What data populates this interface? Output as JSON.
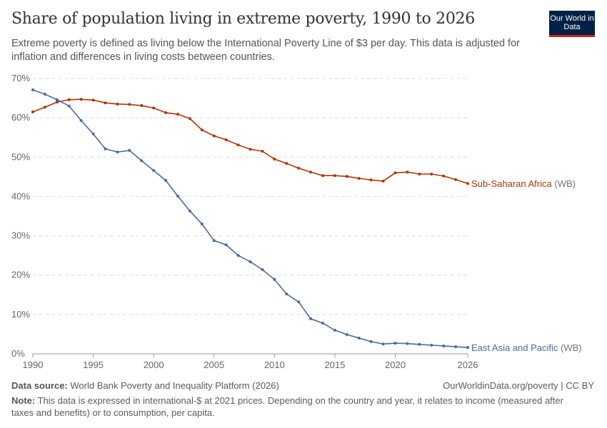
{
  "header": {
    "title": "Share of population living in extreme poverty, 1990 to 2026",
    "subtitle": "Extreme poverty is defined as living below the International Poverty Line of $3 per day. This data is adjusted for inflation and differences in living costs between countries.",
    "logo": "Our World in Data"
  },
  "footer": {
    "source_label": "Data source:",
    "source": "World Bank Poverty and Inequality Platform (2026)",
    "url": "OurWorldinData.org/poverty | CC BY",
    "note_label": "Note:",
    "note": "This data is expressed in international-$ at 2021 prices. Depending on the country and year, it relates to income (measured after taxes and benefits) or to consumption, per capita."
  },
  "chart_data": {
    "type": "line",
    "xlim": [
      1990,
      2026
    ],
    "ylim": [
      0,
      70
    ],
    "x_ticks": [
      "1990",
      "1995",
      "2000",
      "2005",
      "2010",
      "2015",
      "2020",
      "2026"
    ],
    "y_ticks": [
      "0%",
      "10%",
      "20%",
      "30%",
      "40%",
      "50%",
      "60%",
      "70%"
    ],
    "grid": true,
    "x": [
      1990,
      1991,
      1992,
      1993,
      1994,
      1995,
      1996,
      1997,
      1998,
      1999,
      2000,
      2001,
      2002,
      2003,
      2004,
      2005,
      2006,
      2007,
      2008,
      2009,
      2010,
      2011,
      2012,
      2013,
      2014,
      2015,
      2016,
      2017,
      2018,
      2019,
      2020,
      2021,
      2022,
      2023,
      2024,
      2025,
      2026
    ],
    "series": [
      {
        "name": "Sub-Saharan Africa",
        "suffix": "(WB)",
        "color": "#b13507",
        "values": [
          61.5,
          62.7,
          64.0,
          64.6,
          64.7,
          64.5,
          63.8,
          63.5,
          63.4,
          63.1,
          62.5,
          61.3,
          60.9,
          59.8,
          56.9,
          55.4,
          54.4,
          53.1,
          52.0,
          51.5,
          49.5,
          48.4,
          47.2,
          46.2,
          45.3,
          45.3,
          45.1,
          44.6,
          44.2,
          43.9,
          46.0,
          46.2,
          45.7,
          45.7,
          45.2,
          44.3,
          43.3
        ]
      },
      {
        "name": "East Asia and Pacific",
        "suffix": "(WB)",
        "color": "#4c6a9c",
        "values": [
          67.1,
          66.0,
          64.6,
          63.0,
          59.3,
          55.9,
          52.1,
          51.3,
          51.7,
          49.1,
          46.6,
          44.1,
          40.1,
          36.3,
          33.0,
          28.8,
          27.7,
          25.0,
          23.4,
          21.4,
          18.9,
          15.2,
          13.2,
          8.9,
          7.8,
          6.0,
          4.9,
          4.0,
          3.1,
          2.5,
          2.7,
          2.6,
          2.4,
          2.2,
          2.0,
          1.8,
          1.6
        ]
      }
    ]
  }
}
